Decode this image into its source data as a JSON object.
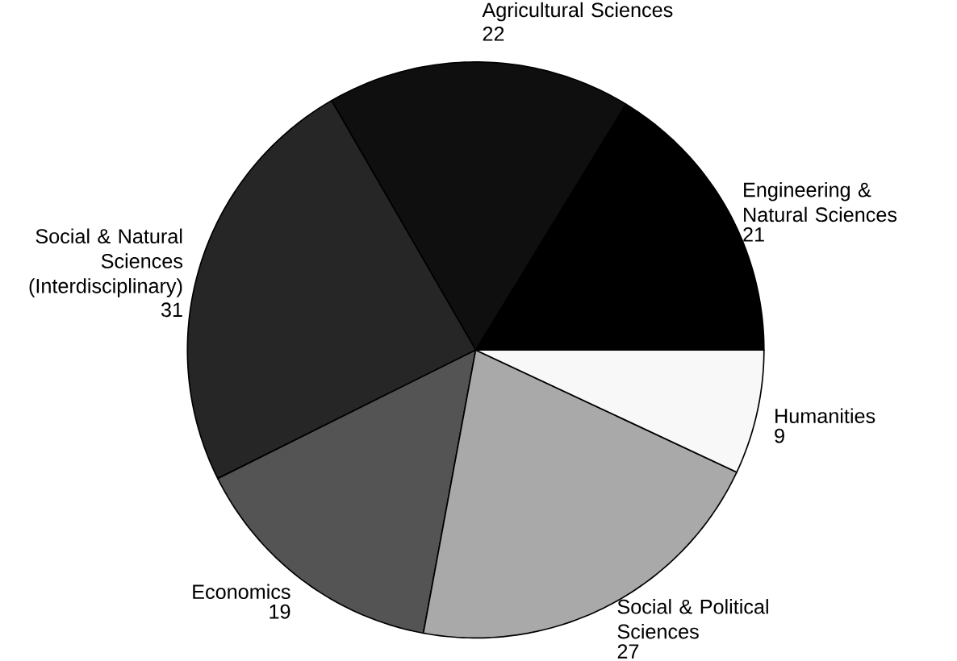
{
  "chart_data": {
    "type": "pie",
    "categories": [
      "Engineering & Natural Sciences",
      "Agricultural Sciences",
      "Social & Natural Sciences (Interdisciplinary)",
      "Economics",
      "Social & Political Sciences",
      "Humanities"
    ],
    "values": [
      21,
      22,
      31,
      19,
      27,
      9
    ],
    "colors": [
      "#000000",
      "#0f0f0f",
      "#262626",
      "#545454",
      "#a9a9a9",
      "#f8f8f8"
    ],
    "data_labels": true
  }
}
